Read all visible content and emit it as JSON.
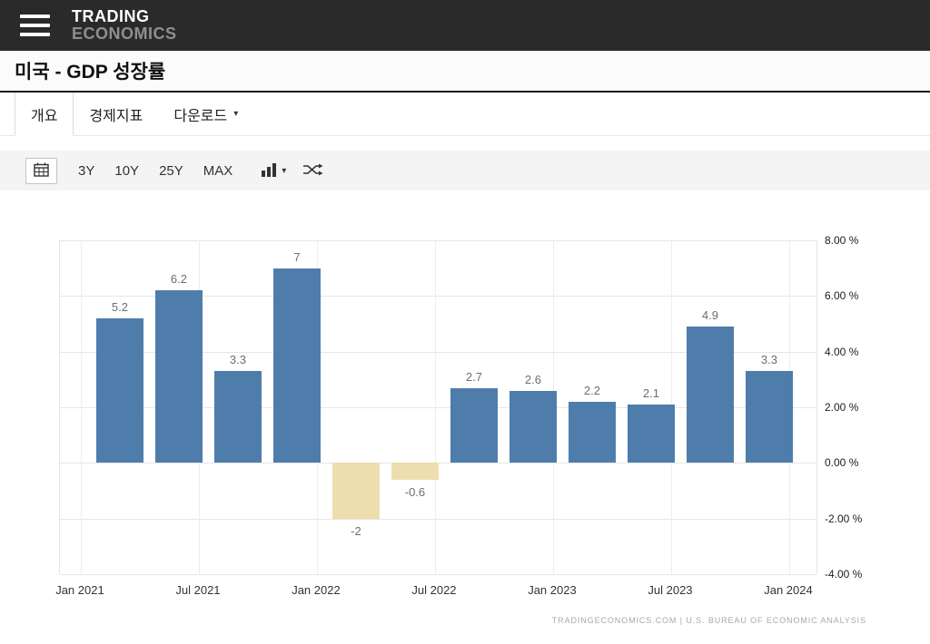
{
  "header": {
    "logo_line1": "TRADING",
    "logo_line2": "ECONOMICS"
  },
  "page": {
    "title": "미국 - GDP 성장률"
  },
  "tabs": [
    {
      "label": "개요",
      "active": true
    },
    {
      "label": "경제지표",
      "active": false
    },
    {
      "label": "다운로드",
      "active": false,
      "caret": "▾"
    }
  ],
  "toolbar": {
    "ranges": [
      "3Y",
      "10Y",
      "25Y",
      "MAX"
    ],
    "caret": "▾",
    "icons": {
      "calendar": "calendar-icon",
      "chart_type": "bar-chart-icon",
      "compare": "shuffle-icon"
    }
  },
  "chart_data": {
    "type": "bar",
    "title": "미국 - GDP 성장률",
    "values": [
      5.2,
      6.2,
      3.3,
      7,
      -2,
      -0.6,
      2.7,
      2.6,
      2.2,
      2.1,
      4.9,
      3.3
    ],
    "labels": [
      "5.2",
      "6.2",
      "3.3",
      "7",
      "-2",
      "-0.6",
      "2.7",
      "2.6",
      "2.2",
      "2.1",
      "4.9",
      "3.3"
    ],
    "x_tick_labels": [
      "Jan 2021",
      "Jul 2021",
      "Jan 2022",
      "Jul 2022",
      "Jan 2023",
      "Jul 2023",
      "Jan 2024"
    ],
    "y_ticks": [
      "8.00 %",
      "6.00 %",
      "4.00 %",
      "2.00 %",
      "0.00 %",
      "-2.00 %",
      "-4.00 %"
    ],
    "ylim": [
      -4,
      8
    ],
    "grid": true,
    "legend": "none",
    "positive_color": "#4e7dab",
    "negative_color": "#ecdfad"
  },
  "footer": {
    "attribution": "TRADINGECONOMICS.COM | U.S. BUREAU OF ECONOMIC ANALYSIS"
  }
}
